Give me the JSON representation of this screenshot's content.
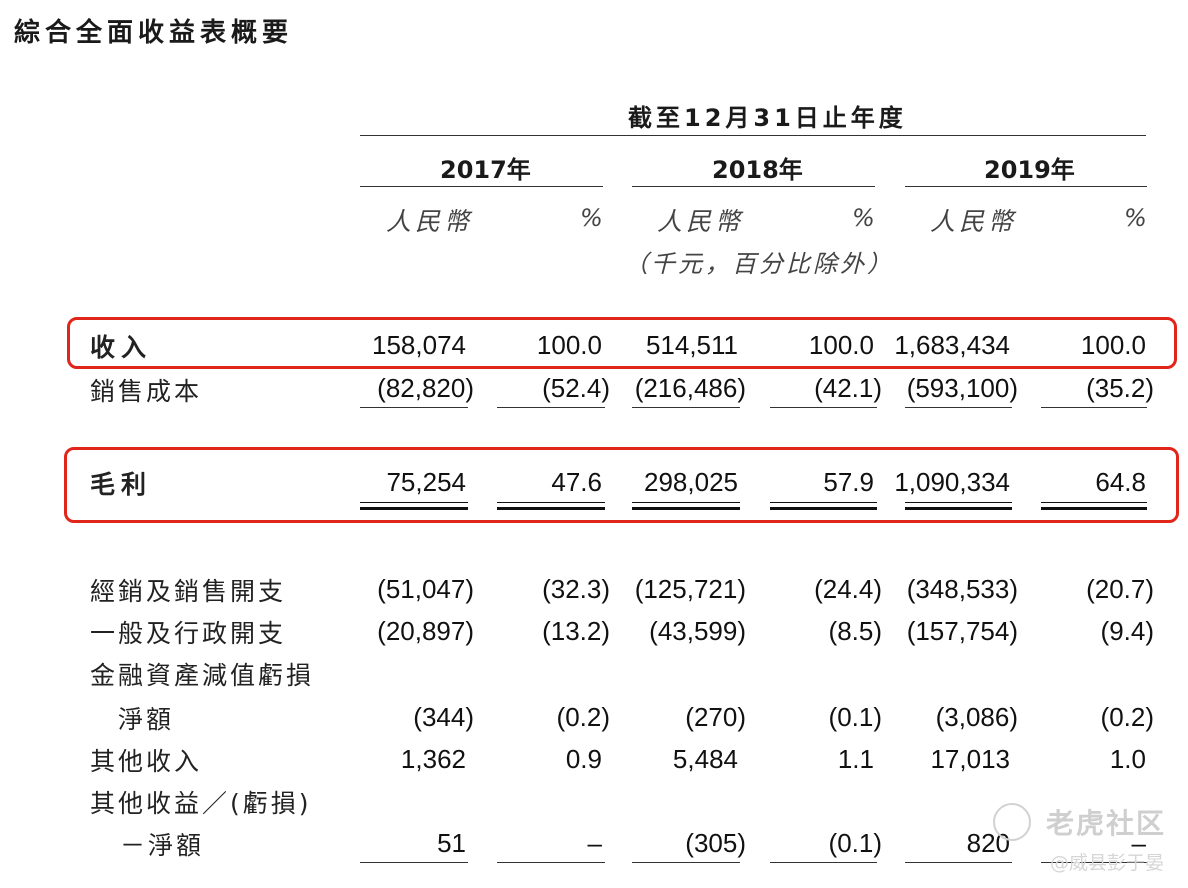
{
  "title": "綜合全面收益表概要",
  "period_header": "截至12月31日止年度",
  "years": [
    "2017年",
    "2018年",
    "2019年"
  ],
  "currency_label": "人民幣",
  "percent_label": "%",
  "unit_note": "（千元，百分比除外）",
  "rows": [
    {
      "label": "收入",
      "values": [
        "158,074",
        "100.0",
        "514,511",
        "100.0",
        "1,683,434",
        "100.0"
      ]
    },
    {
      "label": "銷售成本",
      "values": [
        "(82,820)",
        "(52.4)",
        "(216,486)",
        "(42.1)",
        "(593,100)",
        "(35.2)"
      ]
    },
    {
      "label": "毛利",
      "values": [
        "75,254",
        "47.6",
        "298,025",
        "57.9",
        "1,090,334",
        "64.8"
      ]
    },
    {
      "label": "經銷及銷售開支",
      "values": [
        "(51,047)",
        "(32.3)",
        "(125,721)",
        "(24.4)",
        "(348,533)",
        "(20.7)"
      ]
    },
    {
      "label": "一般及行政開支",
      "values": [
        "(20,897)",
        "(13.2)",
        "(43,599)",
        "(8.5)",
        "(157,754)",
        "(9.4)"
      ]
    },
    {
      "label": "金融資產減值虧損",
      "label2": "淨額",
      "values": [
        "(344)",
        "(0.2)",
        "(270)",
        "(0.1)",
        "(3,086)",
        "(0.2)"
      ]
    },
    {
      "label": "其他收入",
      "values": [
        "1,362",
        "0.9",
        "5,484",
        "1.1",
        "17,013",
        "1.0"
      ]
    },
    {
      "label": "其他收益／(虧損)",
      "label2": "－淨額",
      "values": [
        "51",
        "–",
        "(305)",
        "(0.1)",
        "820",
        "–"
      ]
    }
  ],
  "watermark": {
    "brand": "老虎社区",
    "author": "@威县彭于晏"
  }
}
